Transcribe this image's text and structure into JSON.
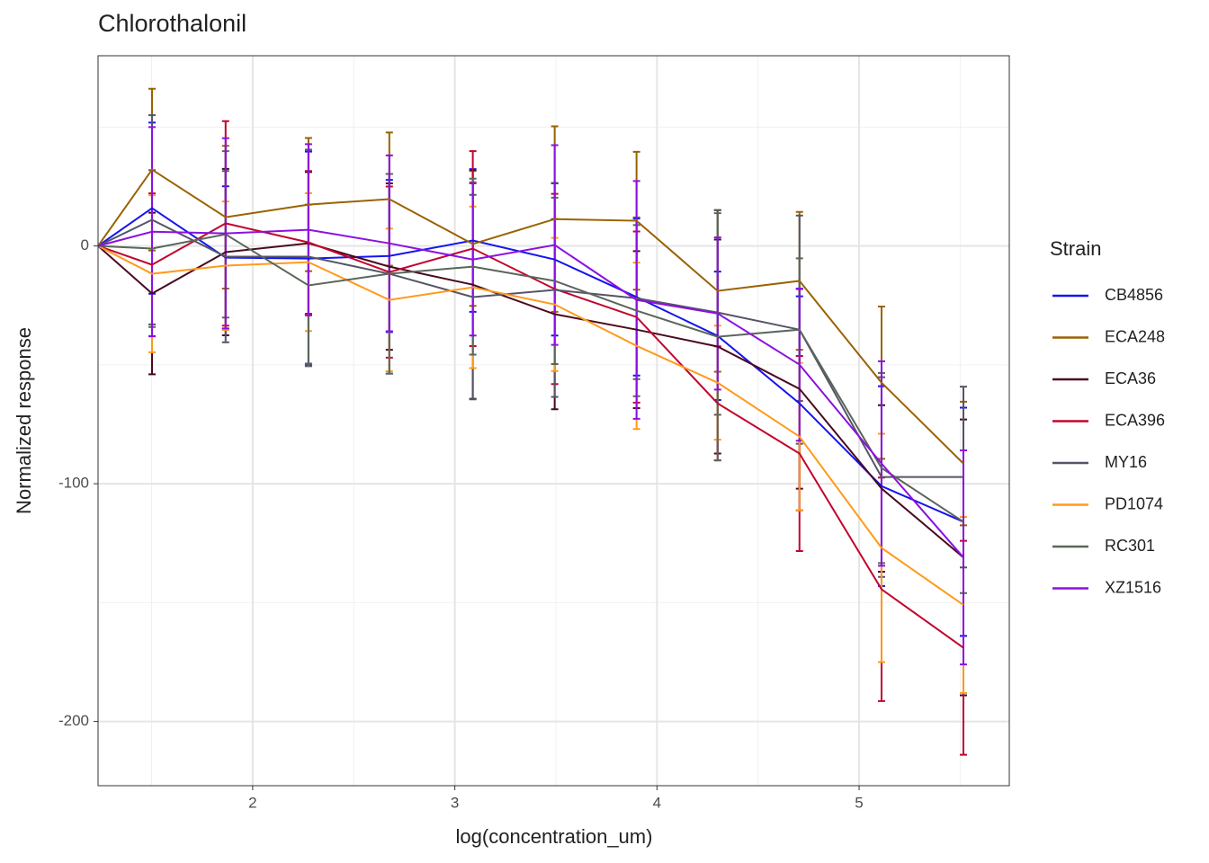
{
  "chart_data": {
    "type": "line",
    "title": "Chlorothalonil",
    "x_label": "log(concentration_um)",
    "y_label": "Normalized response",
    "legend_title": "Strain",
    "x": [
      1.235,
      1.502,
      1.866,
      2.276,
      2.676,
      3.089,
      3.494,
      3.899,
      4.3,
      4.705,
      5.111,
      5.516
    ],
    "xlim": [
      1.235,
      5.743
    ],
    "ylim": [
      -227,
      80
    ],
    "xticks": [
      2,
      3,
      4,
      5
    ],
    "yticks": [
      -200,
      -100,
      0
    ],
    "grid": true,
    "series": [
      {
        "name": "CB4856",
        "color": "#1414f0",
        "values": [
          0,
          15.9,
          -4.9,
          -5.3,
          -4.2,
          2.3,
          -5.7,
          -21.5,
          -37.8,
          -66.2,
          -101,
          -116
        ],
        "errors": [
          null,
          36,
          30,
          45,
          32,
          30,
          32,
          33,
          27,
          45,
          42,
          48
        ]
      },
      {
        "name": "ECA248",
        "color": "#9a6200",
        "values": [
          0,
          32.1,
          12.1,
          17.4,
          19.7,
          0.8,
          11.3,
          10.6,
          -18.9,
          -14.7,
          -57.5,
          -91.5
        ],
        "errors": [
          null,
          34,
          30,
          28,
          28,
          26,
          39,
          29,
          34,
          29,
          32,
          26
        ]
      },
      {
        "name": "ECA36",
        "color": "#4a0a1e",
        "values": [
          0,
          -20,
          -2.6,
          1.1,
          -8.7,
          -16.3,
          -28.7,
          -35.2,
          -42.3,
          -60.1,
          -102,
          -131
        ],
        "errors": [
          null,
          34,
          35,
          30,
          35,
          48,
          40,
          33,
          45,
          42,
          35,
          58
        ]
      },
      {
        "name": "ECA396",
        "color": "#c0062e",
        "values": [
          0,
          -7.9,
          9.5,
          1.5,
          -11,
          -1.1,
          -18.1,
          -29.9,
          -66.2,
          -87.3,
          -144.4,
          -169
        ],
        "errors": [
          null,
          30,
          43,
          30,
          36,
          41,
          40,
          36,
          24,
          41,
          47,
          45
        ]
      },
      {
        "name": "MY16",
        "color": "#555568",
        "values": [
          0,
          11,
          -4.5,
          -4.5,
          -11.7,
          -21.5,
          -18.5,
          -22,
          -28,
          -35.2,
          -97.2,
          -97.2
        ],
        "errors": [
          null,
          44,
          36,
          45,
          42,
          43,
          45,
          34,
          43,
          48,
          42,
          38
        ]
      },
      {
        "name": "PD1074",
        "color": "#ff9a1c",
        "values": [
          0,
          -11.7,
          -8.3,
          -6.8,
          -22.7,
          -17.4,
          -24.6,
          -42,
          -57.5,
          -80.2,
          -127,
          -151
        ],
        "errors": [
          null,
          33,
          27,
          29,
          30,
          34,
          28,
          35,
          24,
          31,
          48,
          37
        ]
      },
      {
        "name": "RC301",
        "color": "#5a665a",
        "values": [
          0,
          -1.1,
          4.9,
          -16.6,
          -11.7,
          -8.7,
          -14.7,
          -27.2,
          -38.2,
          -35.2,
          -93.4,
          -116
        ],
        "errors": [
          null,
          33,
          35,
          34,
          42,
          37,
          35,
          36,
          52,
          30,
          40,
          30
        ]
      },
      {
        "name": "XZ1516",
        "color": "#8c10e0",
        "values": [
          0,
          6,
          5.3,
          6.8,
          1.1,
          -5.7,
          0.4,
          -22.7,
          -28.4,
          -49.9,
          -91.5,
          -131
        ],
        "errors": [
          null,
          44,
          40,
          36,
          37,
          32,
          42,
          50,
          32,
          32,
          43,
          45
        ]
      }
    ]
  }
}
